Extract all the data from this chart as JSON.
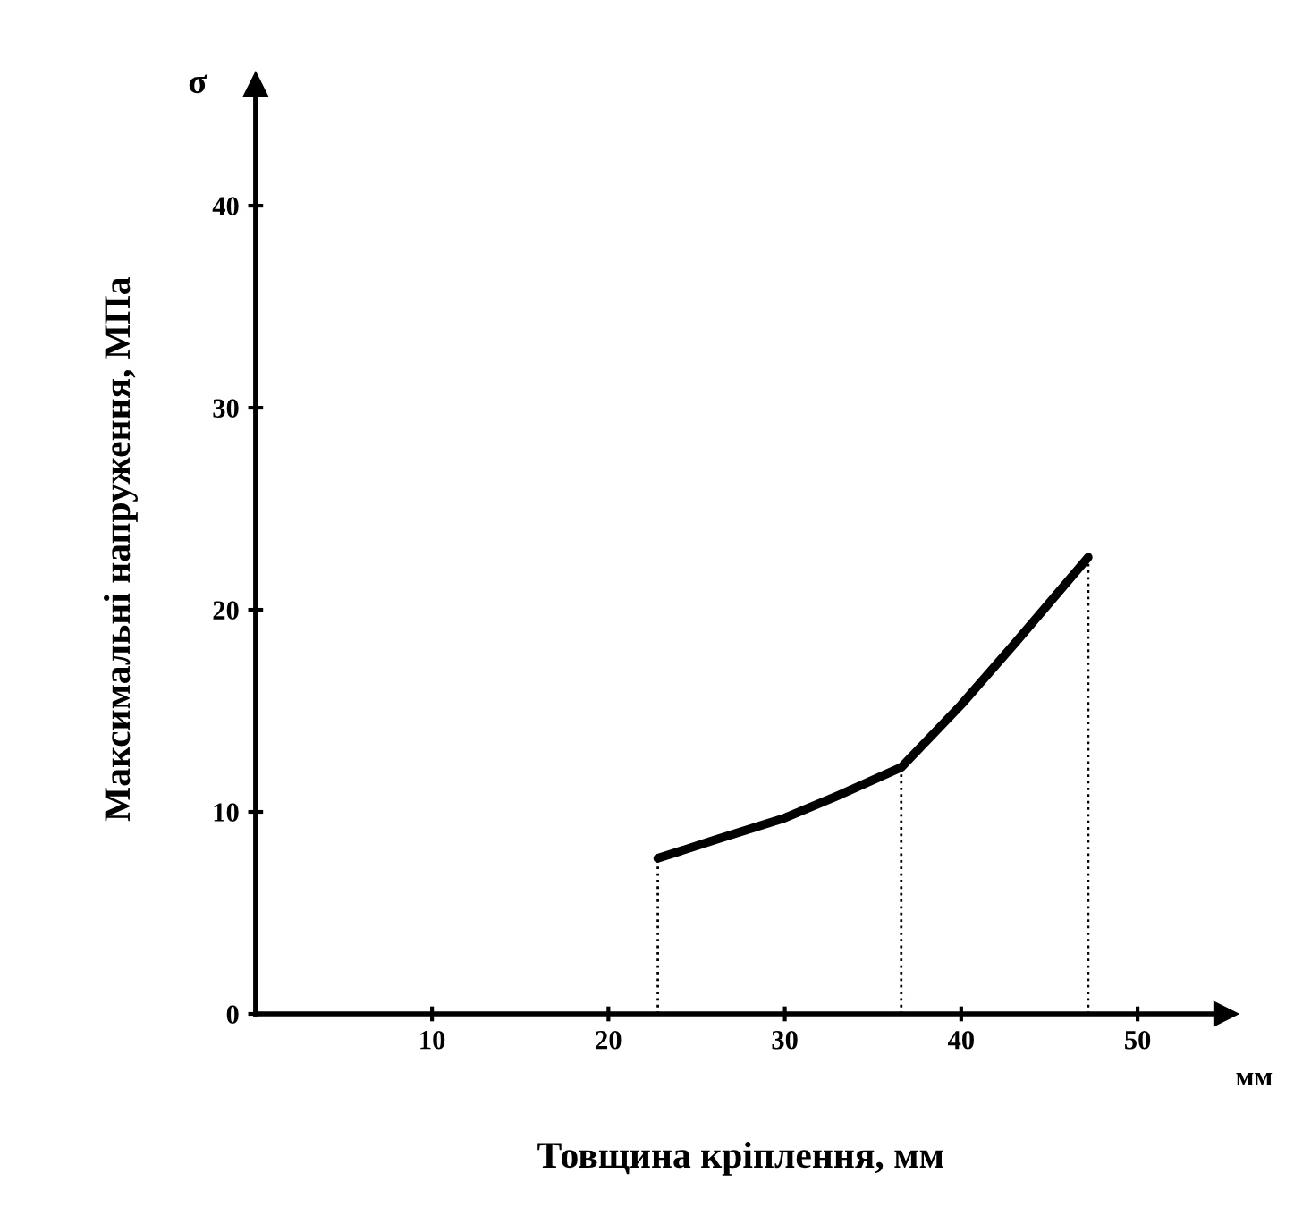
{
  "chart_data": {
    "type": "line",
    "xlabel": "Товщина кріплення, мм",
    "ylabel": "Максимальні напруження, МПа",
    "annotations": [
      "σ",
      "мм"
    ],
    "x": [
      22.8,
      26,
      30,
      33,
      36.6,
      40,
      43,
      47.2
    ],
    "series": [
      {
        "color": "#000000",
        "values": [
          7.7,
          8.6,
          9.7,
          10.8,
          12.2,
          15.3,
          18.3,
          22.6
        ]
      }
    ],
    "xlim": [
      0,
      55
    ],
    "ylim": [
      0,
      46
    ],
    "xticks": [
      10,
      20,
      30,
      40,
      50
    ],
    "yticks": [
      0,
      10,
      20,
      30,
      40
    ],
    "ref_lines": [
      {
        "axis": "x",
        "value": 22.8,
        "color": "#000000",
        "line_style": "dotted"
      },
      {
        "axis": "x",
        "value": 36.6,
        "color": "#000000",
        "line_style": "dotted"
      },
      {
        "axis": "x",
        "value": 47.2,
        "color": "#000000",
        "line_style": "dotted"
      }
    ],
    "grid": false,
    "legend": false,
    "marker": "none",
    "line_style": "solid"
  }
}
